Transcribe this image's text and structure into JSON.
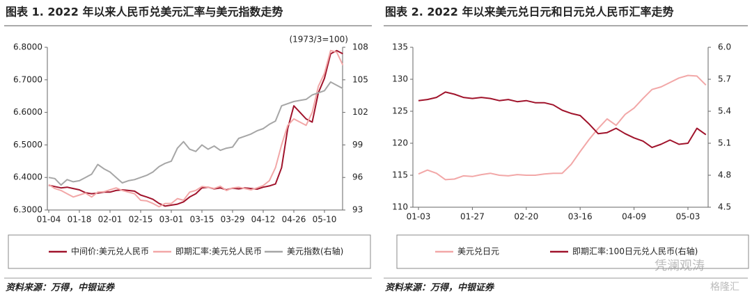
{
  "chart_data": [
    {
      "type": "line",
      "title": "图表 1. 2022 年以来人民币兑美元汇率与美元指数走势",
      "y2_label": "(1973/3=100)",
      "source": "资料来源：万得，中银证券",
      "categories": [
        "01-04",
        null,
        null,
        null,
        null,
        "01-18",
        null,
        null,
        null,
        null,
        "02-01",
        null,
        null,
        null,
        null,
        "02-15",
        null,
        null,
        null,
        null,
        "03-01",
        null,
        null,
        null,
        null,
        "03-15",
        null,
        null,
        null,
        null,
        "03-29",
        null,
        null,
        null,
        null,
        "04-12",
        null,
        null,
        null,
        null,
        "04-26",
        null,
        null,
        null,
        null,
        "05-10",
        null,
        null,
        null
      ],
      "ylim": [
        6.3,
        6.8
      ],
      "yticks": [
        {
          "value": 6.3,
          "label": "6.3000"
        },
        {
          "value": 6.4,
          "label": "6.4000"
        },
        {
          "value": 6.5,
          "label": "6.5000"
        },
        {
          "value": 6.6,
          "label": "6.6000"
        },
        {
          "value": 6.7,
          "label": "6.7000"
        },
        {
          "value": 6.8,
          "label": "6.8000"
        }
      ],
      "y2lim": [
        93,
        108
      ],
      "y2ticks": [
        93,
        96,
        99,
        102,
        105,
        108
      ],
      "series": [
        {
          "name": "中间价:美元兑人民币",
          "color": "#a0132b",
          "axis": "y",
          "values": [
            6.376,
            6.372,
            6.368,
            6.37,
            6.366,
            6.362,
            6.353,
            6.35,
            6.352,
            6.355,
            6.355,
            6.36,
            6.362,
            6.36,
            6.358,
            6.346,
            6.34,
            6.333,
            6.32,
            6.312,
            6.315,
            6.318,
            6.325,
            6.34,
            6.35,
            6.368,
            6.37,
            6.365,
            6.368,
            6.362,
            6.367,
            6.365,
            6.368,
            6.366,
            6.364,
            6.37,
            6.374,
            6.38,
            6.43,
            6.55,
            6.62,
            6.6,
            6.58,
            6.57,
            6.66,
            6.705,
            6.78,
            6.79,
            6.78
          ]
        },
        {
          "name": "即期汇率:美元兑人民币",
          "color": "#f2a7a7",
          "axis": "y",
          "values": [
            6.378,
            6.366,
            6.36,
            6.35,
            6.34,
            6.346,
            6.352,
            6.34,
            6.355,
            6.356,
            6.362,
            6.368,
            6.36,
            6.355,
            6.35,
            6.33,
            6.328,
            6.32,
            6.31,
            6.32,
            6.32,
            6.335,
            6.33,
            6.355,
            6.36,
            6.372,
            6.37,
            6.366,
            6.373,
            6.36,
            6.368,
            6.37,
            6.366,
            6.362,
            6.368,
            6.375,
            6.39,
            6.43,
            6.5,
            6.56,
            6.58,
            6.57,
            6.56,
            6.6,
            6.68,
            6.72,
            6.79,
            6.785,
            6.745
          ]
        },
        {
          "name": "美元指数(右轴)",
          "color": "#a6a6a6",
          "axis": "y2",
          "values": [
            96.0,
            95.9,
            95.3,
            95.8,
            95.6,
            95.7,
            96.0,
            96.3,
            97.2,
            96.8,
            96.5,
            96.0,
            95.5,
            95.7,
            95.8,
            96.0,
            96.2,
            96.5,
            97.0,
            97.3,
            97.5,
            98.7,
            99.3,
            98.6,
            98.4,
            99.0,
            98.6,
            98.9,
            98.5,
            98.7,
            98.8,
            99.6,
            99.8,
            100.0,
            100.3,
            100.5,
            100.9,
            101.2,
            102.6,
            102.8,
            103.0,
            103.1,
            103.2,
            103.6,
            103.8,
            104.0,
            104.8,
            104.5,
            104.2
          ]
        }
      ]
    },
    {
      "type": "line",
      "title": "图表 2. 2022 年以来美元兑日元和日元兑人民币汇率走势",
      "source": "资料来源：万得，中银证券",
      "categories": [
        "01-03",
        null,
        null,
        null,
        null,
        null,
        "01-27",
        null,
        null,
        null,
        null,
        null,
        "02-20",
        null,
        null,
        null,
        null,
        null,
        "03-16",
        null,
        null,
        null,
        null,
        null,
        "04-09",
        null,
        null,
        null,
        null,
        null,
        "05-03",
        null,
        null
      ],
      "ylim": [
        110,
        135
      ],
      "yticks": [
        110,
        115,
        120,
        125,
        130,
        135
      ],
      "y2lim": [
        4.5,
        6.0
      ],
      "y2ticks": [
        4.5,
        4.8,
        5.1,
        5.4,
        5.7,
        {
          "value": 6.0,
          "label": "6.0"
        }
      ],
      "series": [
        {
          "name": "美元兑日元",
          "color": "#f2a7a7",
          "axis": "y",
          "values": [
            115.2,
            115.8,
            115.3,
            114.3,
            114.4,
            114.9,
            114.8,
            115.1,
            115.3,
            115.0,
            114.9,
            115.1,
            115.0,
            115.0,
            115.2,
            115.3,
            115.3,
            116.7,
            118.7,
            120.6,
            122.3,
            123.8,
            122.8,
            124.5,
            125.5,
            127.0,
            128.4,
            128.8,
            129.5,
            130.2,
            130.6,
            130.5,
            129.1
          ]
        },
        {
          "name": "即期汇率:100日元兑人民币(右轴)",
          "color": "#a0132b",
          "axis": "y2",
          "values": [
            5.5,
            5.51,
            5.53,
            5.58,
            5.56,
            5.53,
            5.52,
            5.53,
            5.52,
            5.5,
            5.51,
            5.49,
            5.5,
            5.48,
            5.48,
            5.46,
            5.41,
            5.38,
            5.36,
            5.28,
            5.19,
            5.2,
            5.24,
            5.19,
            5.15,
            5.12,
            5.06,
            5.09,
            5.13,
            5.09,
            5.1,
            5.24,
            5.18
          ]
        }
      ]
    }
  ],
  "watermark": [
    "凭澜观涛",
    "格隆汇"
  ]
}
